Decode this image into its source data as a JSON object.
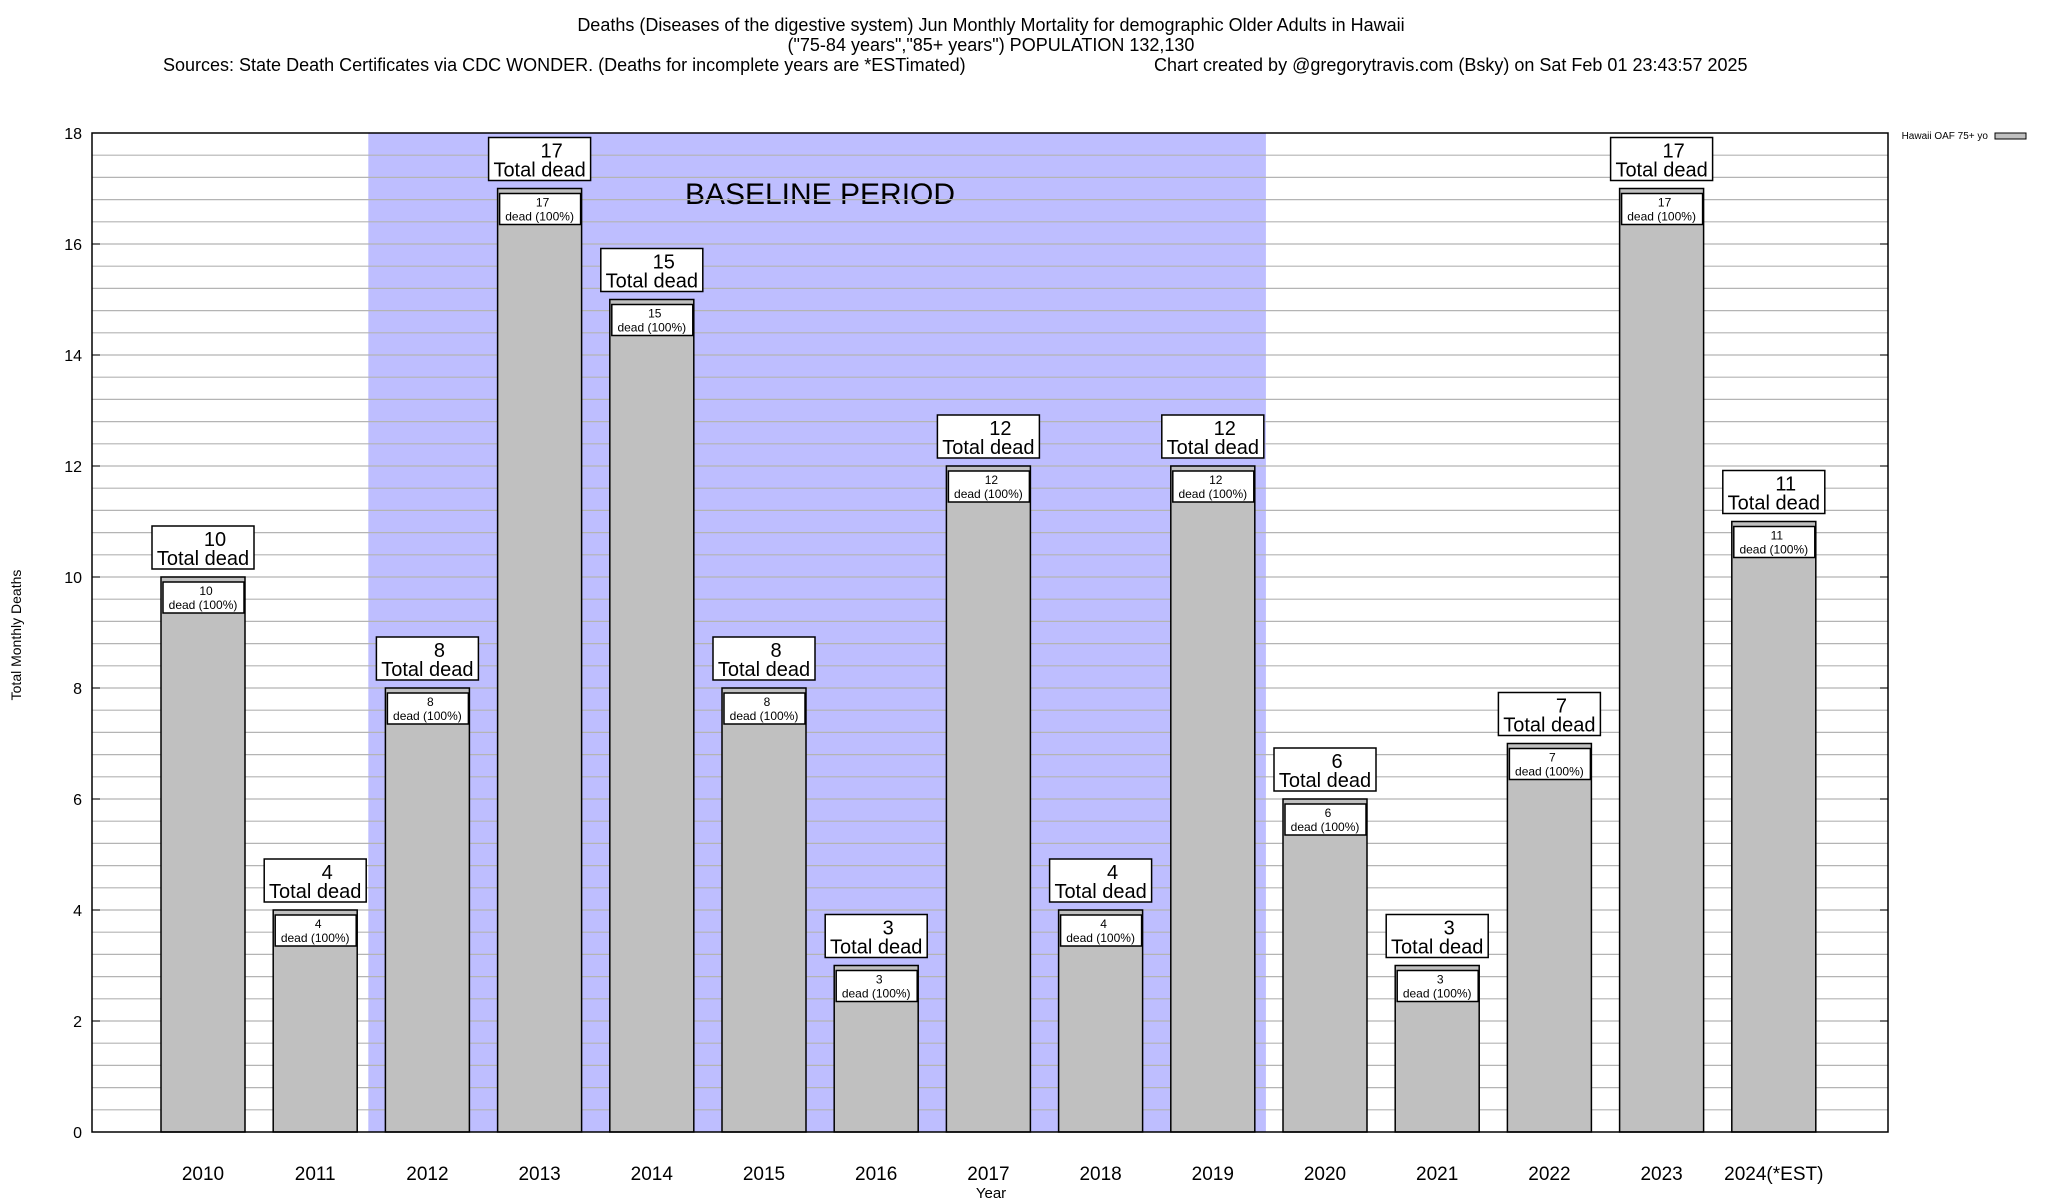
{
  "chart_data": {
    "type": "bar",
    "title_lines": [
      "Deaths (Diseases of the digestive system) Jun Monthly Mortality for demographic Older Adults in Hawaii",
      "(\"75-84 years\",\"85+ years\") POPULATION 132,130"
    ],
    "sources": "Sources: State Death Certificates via CDC WONDER. (Deaths for incomplete years are *ESTimated)",
    "credit": "Chart created by @gregorytravis.com (Bsky) on Sat Feb 01 23:43:57 2025",
    "xlabel": "Year",
    "ylabel": "Total Monthly Deaths",
    "ylim": [
      0,
      18
    ],
    "yticks": [
      0,
      2,
      4,
      6,
      8,
      10,
      12,
      14,
      16,
      18
    ],
    "minor_grid_step": 0.4,
    "categories": [
      "2010",
      "2011",
      "2012",
      "2013",
      "2014",
      "2015",
      "2016",
      "2017",
      "2018",
      "2019",
      "2020",
      "2021",
      "2022",
      "2023",
      "2024(*EST)"
    ],
    "series": [
      {
        "name": "Hawaii OAF 75+ yo",
        "color": "#c0c0c0",
        "values": [
          10,
          4,
          8,
          17,
          15,
          8,
          3,
          12,
          4,
          12,
          6,
          3,
          7,
          17,
          11
        ]
      }
    ],
    "total_label_suffix": "Total dead",
    "inner_label_suffix": "dead (100%)",
    "baseline": {
      "label": "BASELINE PERIOD",
      "from": "2012",
      "to": "2019",
      "color": "#bebeff"
    },
    "legend_position": "top-right",
    "grid": true
  }
}
